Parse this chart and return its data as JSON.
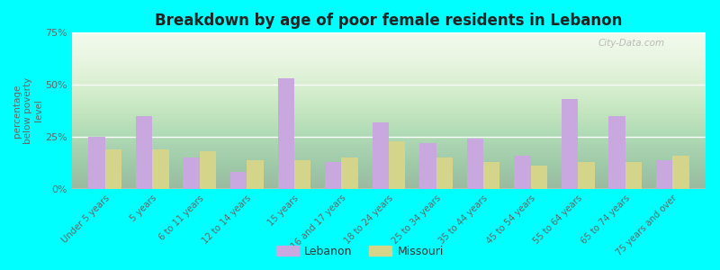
{
  "title": "Breakdown by age of poor female residents in Lebanon",
  "ylabel": "percentage\nbelow poverty\nlevel",
  "categories": [
    "Under 5 years",
    "5 years",
    "6 to 11 years",
    "12 to 14 years",
    "15 years",
    "16 and 17 years",
    "18 to 24 years",
    "25 to 34 years",
    "35 to 44 years",
    "45 to 54 years",
    "55 to 64 years",
    "65 to 74 years",
    "75 years and over"
  ],
  "lebanon_values": [
    25,
    35,
    15,
    8,
    53,
    13,
    32,
    22,
    24,
    16,
    43,
    35,
    14
  ],
  "missouri_values": [
    19,
    19,
    18,
    14,
    14,
    15,
    23,
    15,
    13,
    11,
    13,
    13,
    16
  ],
  "lebanon_color": "#c9a8e0",
  "missouri_color": "#d4d48a",
  "plot_bg_top": "#f0f8e8",
  "plot_bg_bottom": "#d8eecc",
  "outer_background": "#00ffff",
  "ylim": [
    0,
    75
  ],
  "yticks": [
    0,
    25,
    50,
    75
  ],
  "yticklabels": [
    "0%",
    "25%",
    "50%",
    "75%"
  ],
  "bar_width": 0.35,
  "legend_labels": [
    "Lebanon",
    "Missouri"
  ],
  "watermark": "City-Data.com"
}
